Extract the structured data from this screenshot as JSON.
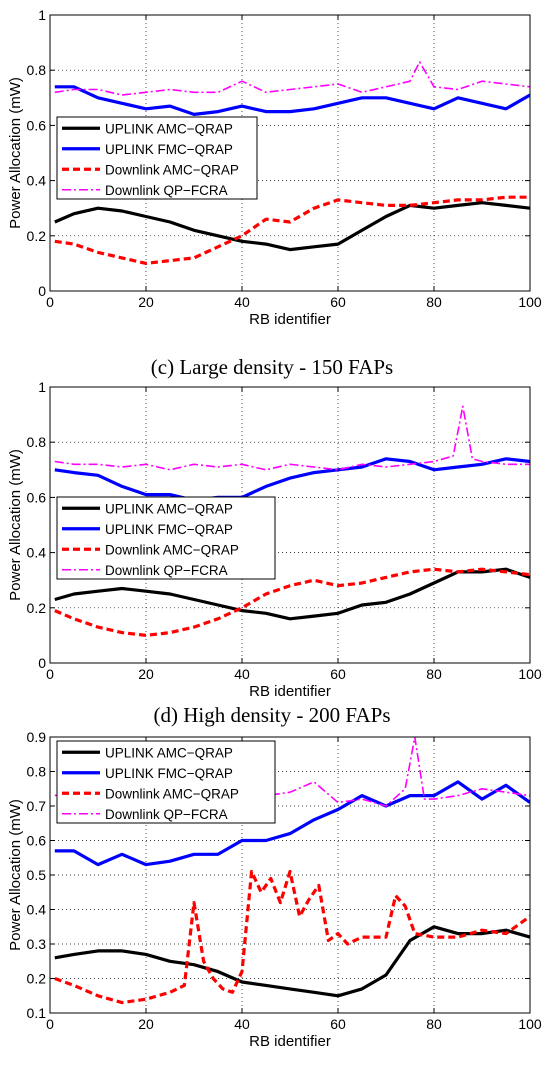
{
  "colors": {
    "uplink_amc": "#000000",
    "uplink_fmc": "#0000ff",
    "downlink_amc": "#ff0000",
    "downlink_qp": "#ff00ff",
    "grid": "#000000"
  },
  "captions": [
    "(c) Large density - 150 FAPs",
    "(d) High density - 200 FAPs"
  ],
  "chart_data": [
    {
      "type": "line",
      "xlabel": "RB identifier",
      "ylabel": "Power Allocation (mW)",
      "xlim": [
        0,
        100
      ],
      "ylim": [
        0,
        1
      ],
      "xticks": [
        "0",
        "20",
        "40",
        "60",
        "80",
        "100"
      ],
      "yticks": [
        "0",
        "0.2",
        "0.4",
        "0.6",
        "0.8",
        "1"
      ],
      "grid": true,
      "legend": "center-left",
      "series": [
        {
          "name": "UPLINK AMC−QRAP",
          "x": [
            1,
            5,
            10,
            15,
            20,
            25,
            30,
            35,
            40,
            45,
            50,
            55,
            60,
            65,
            70,
            75,
            80,
            85,
            90,
            95,
            100
          ],
          "values": [
            0.25,
            0.28,
            0.3,
            0.29,
            0.27,
            0.25,
            0.22,
            0.2,
            0.18,
            0.17,
            0.15,
            0.16,
            0.17,
            0.22,
            0.27,
            0.31,
            0.3,
            0.31,
            0.32,
            0.31,
            0.3
          ]
        },
        {
          "name": "UPLINK FMC−QRAP",
          "x": [
            1,
            5,
            10,
            15,
            20,
            25,
            30,
            35,
            40,
            45,
            50,
            55,
            60,
            65,
            70,
            75,
            80,
            85,
            90,
            95,
            100
          ],
          "values": [
            0.74,
            0.74,
            0.7,
            0.68,
            0.66,
            0.67,
            0.64,
            0.65,
            0.67,
            0.65,
            0.65,
            0.66,
            0.68,
            0.7,
            0.7,
            0.68,
            0.66,
            0.7,
            0.68,
            0.66,
            0.71
          ]
        },
        {
          "name": "Downlink AMC−QRAP",
          "x": [
            1,
            5,
            10,
            15,
            20,
            25,
            30,
            35,
            40,
            45,
            50,
            55,
            60,
            65,
            70,
            75,
            80,
            85,
            90,
            95,
            100
          ],
          "values": [
            0.18,
            0.17,
            0.14,
            0.12,
            0.1,
            0.11,
            0.12,
            0.16,
            0.2,
            0.26,
            0.25,
            0.3,
            0.33,
            0.32,
            0.31,
            0.31,
            0.32,
            0.33,
            0.33,
            0.34,
            0.34
          ]
        },
        {
          "name": "Downlink QP−FCRA",
          "x": [
            1,
            5,
            10,
            15,
            20,
            25,
            30,
            35,
            40,
            45,
            50,
            55,
            60,
            65,
            70,
            75,
            77,
            80,
            85,
            90,
            95,
            100
          ],
          "values": [
            0.72,
            0.73,
            0.73,
            0.71,
            0.72,
            0.73,
            0.72,
            0.72,
            0.76,
            0.72,
            0.73,
            0.74,
            0.75,
            0.72,
            0.74,
            0.76,
            0.83,
            0.74,
            0.73,
            0.76,
            0.75,
            0.74
          ]
        }
      ]
    },
    {
      "type": "line",
      "xlabel": "RB identifier",
      "ylabel": "Power Allocation (mW)",
      "xlim": [
        0,
        100
      ],
      "ylim": [
        0,
        1
      ],
      "xticks": [
        "0",
        "20",
        "40",
        "60",
        "80",
        "100"
      ],
      "yticks": [
        "0",
        "0.2",
        "0.4",
        "0.6",
        "0.8",
        "1"
      ],
      "grid": true,
      "legend": "center-left",
      "series": [
        {
          "name": "UPLINK AMC−QRAP",
          "x": [
            1,
            5,
            10,
            15,
            20,
            25,
            30,
            35,
            40,
            45,
            50,
            55,
            60,
            65,
            70,
            75,
            80,
            85,
            90,
            95,
            100
          ],
          "values": [
            0.23,
            0.25,
            0.26,
            0.27,
            0.26,
            0.25,
            0.23,
            0.21,
            0.19,
            0.18,
            0.16,
            0.17,
            0.18,
            0.21,
            0.22,
            0.25,
            0.29,
            0.33,
            0.33,
            0.34,
            0.31
          ]
        },
        {
          "name": "UPLINK FMC−QRAP",
          "x": [
            1,
            5,
            10,
            15,
            20,
            25,
            30,
            35,
            40,
            45,
            50,
            55,
            60,
            65,
            70,
            75,
            80,
            85,
            90,
            95,
            100
          ],
          "values": [
            0.7,
            0.69,
            0.68,
            0.64,
            0.61,
            0.61,
            0.59,
            0.6,
            0.6,
            0.64,
            0.67,
            0.69,
            0.7,
            0.71,
            0.74,
            0.73,
            0.7,
            0.71,
            0.72,
            0.74,
            0.73
          ]
        },
        {
          "name": "Downlink AMC−QRAP",
          "x": [
            1,
            5,
            10,
            15,
            20,
            25,
            30,
            35,
            40,
            45,
            50,
            55,
            60,
            65,
            70,
            75,
            80,
            85,
            90,
            95,
            100
          ],
          "values": [
            0.19,
            0.16,
            0.13,
            0.11,
            0.1,
            0.11,
            0.13,
            0.16,
            0.2,
            0.25,
            0.28,
            0.3,
            0.28,
            0.29,
            0.31,
            0.33,
            0.34,
            0.33,
            0.34,
            0.33,
            0.32
          ]
        },
        {
          "name": "Downlink QP−FCRA",
          "x": [
            1,
            5,
            10,
            15,
            20,
            25,
            30,
            35,
            40,
            45,
            50,
            55,
            60,
            65,
            70,
            75,
            80,
            84,
            86,
            88,
            90,
            95,
            100
          ],
          "values": [
            0.73,
            0.72,
            0.72,
            0.71,
            0.72,
            0.7,
            0.72,
            0.71,
            0.72,
            0.7,
            0.72,
            0.71,
            0.7,
            0.72,
            0.71,
            0.72,
            0.73,
            0.75,
            0.93,
            0.74,
            0.73,
            0.72,
            0.72
          ]
        }
      ]
    },
    {
      "type": "line",
      "xlabel": "RB identifier",
      "ylabel": "Power Allocation (mW)",
      "xlim": [
        0,
        100
      ],
      "ylim": [
        0.1,
        0.9
      ],
      "xticks": [
        "0",
        "20",
        "40",
        "60",
        "80",
        "100"
      ],
      "yticks": [
        "0.1",
        "0.2",
        "0.3",
        "0.4",
        "0.5",
        "0.6",
        "0.7",
        "0.8",
        "0.9"
      ],
      "grid": true,
      "legend": "top-left",
      "series": [
        {
          "name": "UPLINK AMC−QRAP",
          "x": [
            1,
            5,
            10,
            15,
            20,
            25,
            30,
            35,
            40,
            45,
            50,
            55,
            60,
            65,
            70,
            75,
            80,
            85,
            90,
            95,
            100
          ],
          "values": [
            0.26,
            0.27,
            0.28,
            0.28,
            0.27,
            0.25,
            0.24,
            0.22,
            0.19,
            0.18,
            0.17,
            0.16,
            0.15,
            0.17,
            0.21,
            0.31,
            0.35,
            0.33,
            0.33,
            0.34,
            0.32
          ]
        },
        {
          "name": "UPLINK FMC−QRAP",
          "x": [
            1,
            5,
            10,
            15,
            20,
            25,
            30,
            35,
            40,
            45,
            50,
            55,
            60,
            65,
            70,
            75,
            80,
            85,
            90,
            95,
            100
          ],
          "values": [
            0.57,
            0.57,
            0.53,
            0.56,
            0.53,
            0.54,
            0.56,
            0.56,
            0.6,
            0.6,
            0.62,
            0.66,
            0.69,
            0.73,
            0.7,
            0.73,
            0.73,
            0.77,
            0.72,
            0.76,
            0.71
          ]
        },
        {
          "name": "Downlink AMC−QRAP",
          "x": [
            1,
            5,
            10,
            15,
            20,
            25,
            28,
            30,
            32,
            34,
            36,
            38,
            40,
            42,
            44,
            46,
            48,
            50,
            52,
            54,
            56,
            58,
            60,
            62,
            65,
            70,
            72,
            74,
            76,
            80,
            85,
            90,
            95,
            100
          ],
          "values": [
            0.2,
            0.18,
            0.15,
            0.13,
            0.14,
            0.16,
            0.18,
            0.42,
            0.25,
            0.2,
            0.17,
            0.16,
            0.22,
            0.51,
            0.45,
            0.49,
            0.42,
            0.51,
            0.38,
            0.43,
            0.47,
            0.31,
            0.33,
            0.3,
            0.32,
            0.32,
            0.44,
            0.41,
            0.33,
            0.32,
            0.32,
            0.34,
            0.33,
            0.38
          ]
        },
        {
          "name": "Downlink QP−FCRA",
          "x": [
            1,
            5,
            10,
            15,
            20,
            25,
            30,
            35,
            40,
            45,
            50,
            55,
            60,
            65,
            70,
            74,
            76,
            78,
            80,
            85,
            90,
            95,
            100
          ],
          "values": [
            0.73,
            0.74,
            0.72,
            0.73,
            0.72,
            0.73,
            0.72,
            0.71,
            0.7,
            0.73,
            0.74,
            0.77,
            0.71,
            0.72,
            0.7,
            0.75,
            0.9,
            0.72,
            0.72,
            0.73,
            0.75,
            0.74,
            0.73
          ]
        }
      ]
    }
  ]
}
